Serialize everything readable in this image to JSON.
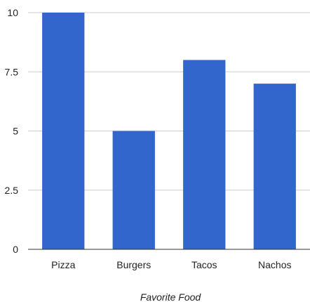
{
  "chart_data": {
    "type": "bar",
    "categories": [
      "Pizza",
      "Burgers",
      "Tacos",
      "Nachos"
    ],
    "values": [
      10,
      5,
      8,
      7
    ],
    "xlabel": "Favorite Food",
    "ylabel": "",
    "ylim": [
      0,
      10
    ],
    "yticks": [
      0,
      2.5,
      5,
      7.5,
      10
    ],
    "ytick_labels": [
      "0",
      "2.5",
      "5",
      "7.5",
      "10"
    ],
    "grid": true,
    "legend": "none",
    "colors": {
      "bar": "#3366cc",
      "grid": "#cccccc",
      "axis": "#333333"
    }
  }
}
